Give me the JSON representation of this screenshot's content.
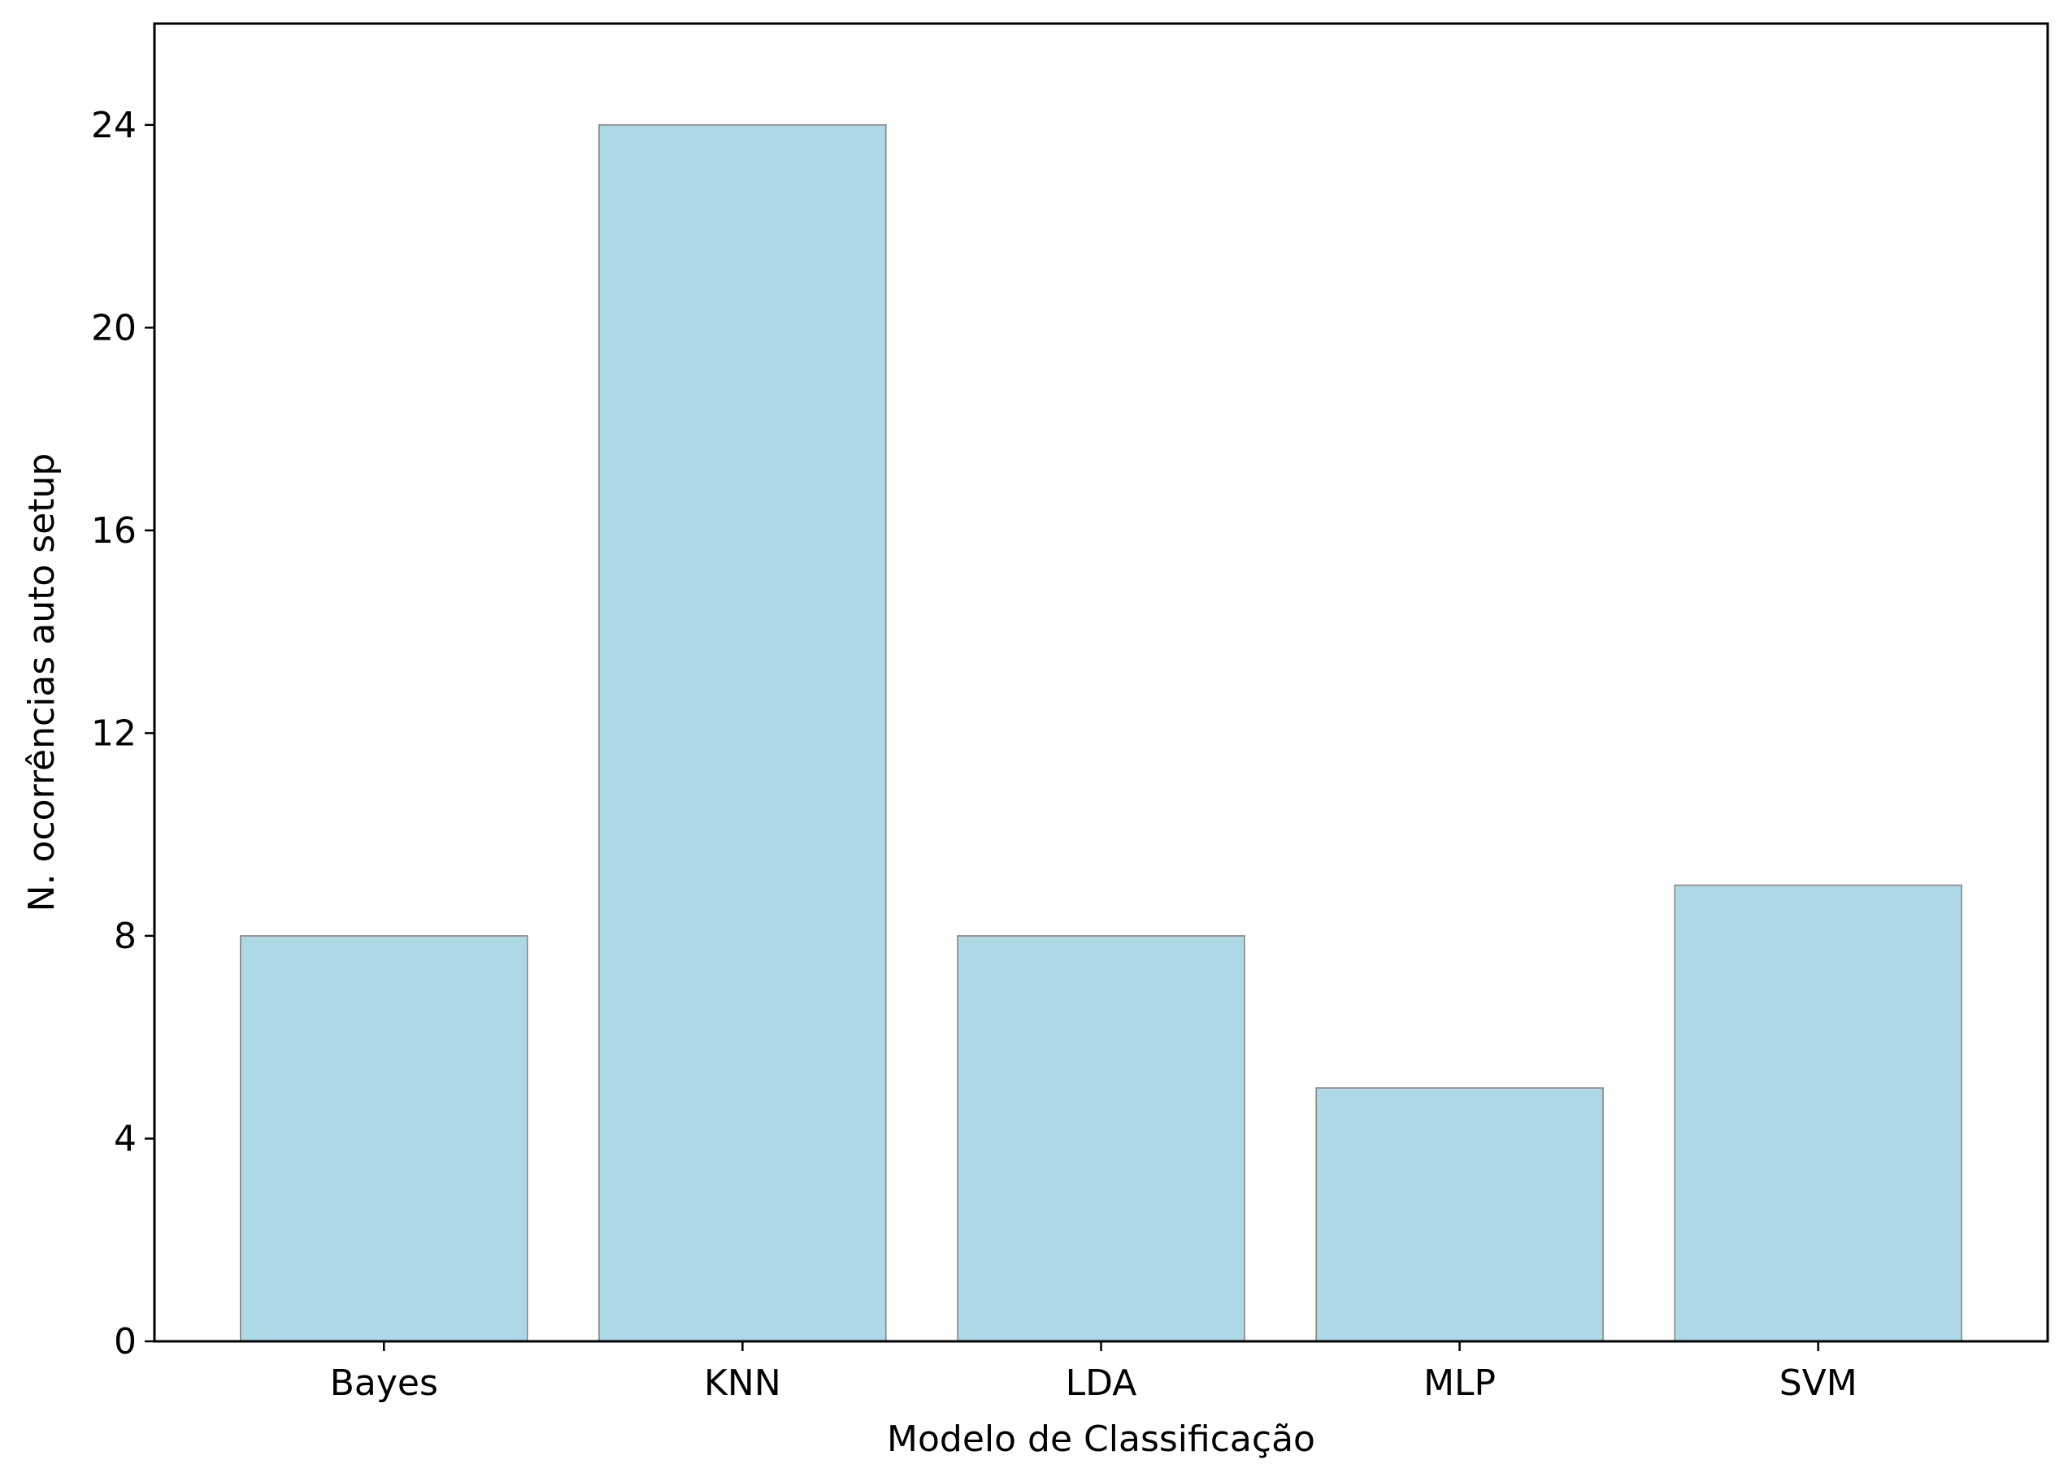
{
  "chart_data": {
    "type": "bar",
    "title": "",
    "xlabel": "Modelo de Classificação",
    "ylabel": "N. ocorrências auto setup",
    "categories": [
      "Bayes",
      "KNN",
      "LDA",
      "MLP",
      "SVM"
    ],
    "values": [
      8,
      24,
      8,
      5,
      9
    ],
    "ylim": [
      0,
      26
    ],
    "yticks": [
      0,
      4,
      8,
      12,
      16,
      20,
      24
    ],
    "grid": false,
    "legend": "none",
    "colors": {
      "bar_fill": "#add8e6",
      "bar_edge": "#7f7f7f",
      "axis": "#000000"
    }
  }
}
